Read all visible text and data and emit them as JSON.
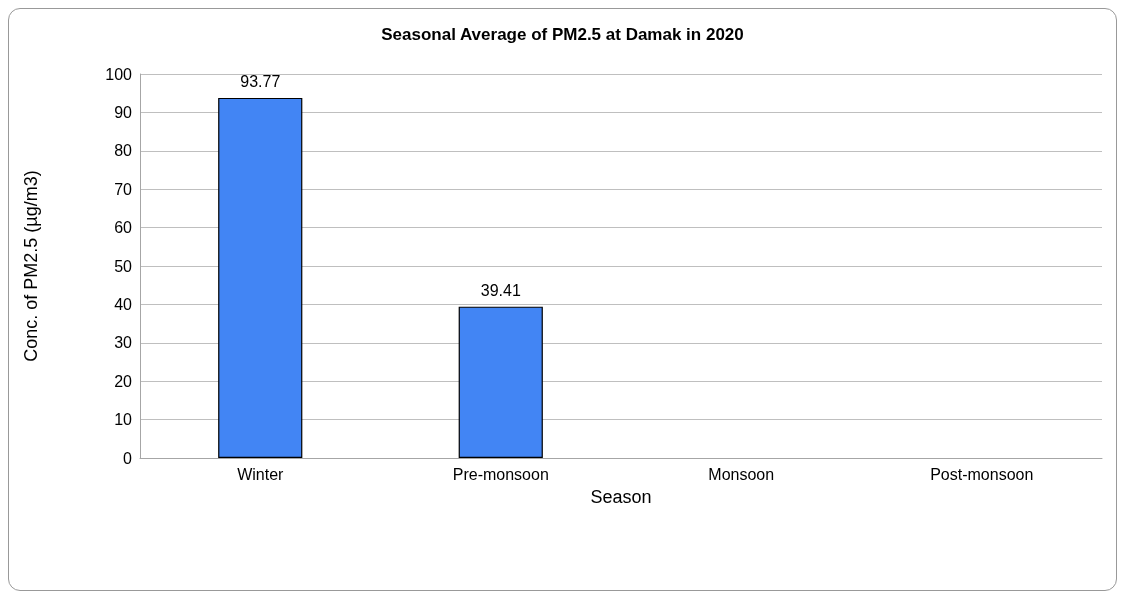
{
  "chart_data": {
    "type": "bar",
    "title": "Seasonal Average of PM2.5 at Damak in 2020",
    "xlabel": "Season",
    "ylabel": "Conc. of PM2.5 (µg/m3)",
    "categories": [
      "Winter",
      "Pre-monsoon",
      "Monsoon",
      "Post-monsoon"
    ],
    "values": [
      93.77,
      39.41,
      null,
      null
    ],
    "color": "#4285f4",
    "data_labels": true,
    "ylim": [
      0,
      100
    ],
    "yticks": [
      0,
      10,
      20,
      30,
      40,
      50,
      60,
      70,
      80,
      90,
      100
    ],
    "grid": "y"
  }
}
